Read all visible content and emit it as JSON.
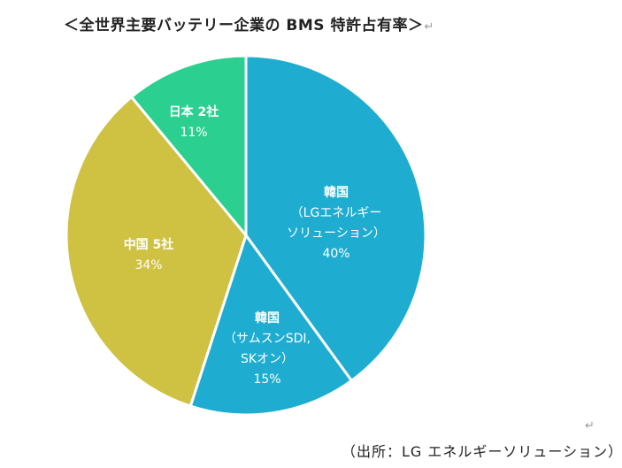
{
  "title": "＜全世界主要バッテリー企業の BMS 特許占有率＞",
  "paragraph_mark": "↵",
  "source": "（出所：LG エネルギーソリューション）",
  "chart_data": {
    "type": "pie",
    "title": "＜全世界主要バッテリー企業の BMS 特許占有率＞",
    "start_angle_deg": 0,
    "direction": "clockwise",
    "slices": [
      {
        "name": "韓国",
        "detail": [
          "（LGエネルギー",
          "ソリューション）"
        ],
        "value": 40,
        "value_label": "40%",
        "color": "#1EADD1"
      },
      {
        "name": "韓国",
        "detail": [
          "（サムスンSDI,",
          "SKオン）"
        ],
        "value": 15,
        "value_label": "15%",
        "color": "#1EADD1"
      },
      {
        "name": "中国 5社",
        "detail": [],
        "value": 34,
        "value_label": "34%",
        "color": "#CFC142"
      },
      {
        "name": "日本 2社",
        "detail": [],
        "value": 11,
        "value_label": "11%",
        "color": "#2BCF90"
      }
    ]
  }
}
